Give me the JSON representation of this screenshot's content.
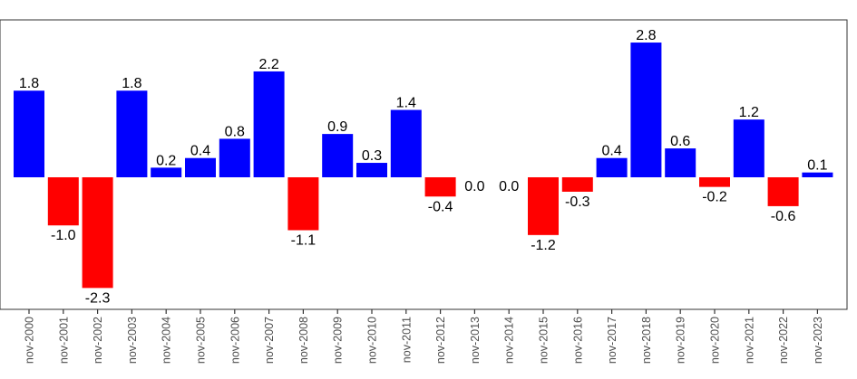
{
  "chart_data": {
    "type": "bar",
    "title": "",
    "xlabel": "",
    "ylabel": "",
    "ylim": [
      -2.75,
      3.25
    ],
    "yticks": [
      -2,
      -1,
      0,
      1,
      2,
      3
    ],
    "grid": false,
    "legend": "none",
    "categories": [
      "nov-2000",
      "nov-2001",
      "nov-2002",
      "nov-2003",
      "nov-2004",
      "nov-2005",
      "nov-2006",
      "nov-2007",
      "nov-2008",
      "nov-2009",
      "nov-2010",
      "nov-2011",
      "nov-2012",
      "nov-2013",
      "nov-2014",
      "nov-2015",
      "nov-2016",
      "nov-2017",
      "nov-2018",
      "nov-2019",
      "nov-2020",
      "nov-2021",
      "nov-2022",
      "nov-2023"
    ],
    "values": [
      1.8,
      -1.0,
      -2.3,
      1.8,
      0.2,
      0.4,
      0.8,
      2.2,
      -1.1,
      0.9,
      0.3,
      1.4,
      -0.4,
      0.0,
      0.0,
      -1.2,
      -0.3,
      0.4,
      2.8,
      0.6,
      -0.2,
      1.2,
      -0.6,
      0.1
    ],
    "labels": [
      "1.8",
      "-1.0",
      "-2.3",
      "1.8",
      "0.2",
      "0.4",
      "0.8",
      "2.2",
      "-1.1",
      "0.9",
      "0.3",
      "1.4",
      "-0.4",
      "0.0",
      "0.0",
      "-1.2",
      "-0.3",
      "0.4",
      "2.8",
      "0.6",
      "-0.2",
      "1.2",
      "-0.6",
      "0.1"
    ],
    "colors": {
      "positive": "#0000ff",
      "negative": "#ff0000",
      "axis": "#333333",
      "text": "#000000",
      "tick_text": "#4d4d4d"
    }
  }
}
